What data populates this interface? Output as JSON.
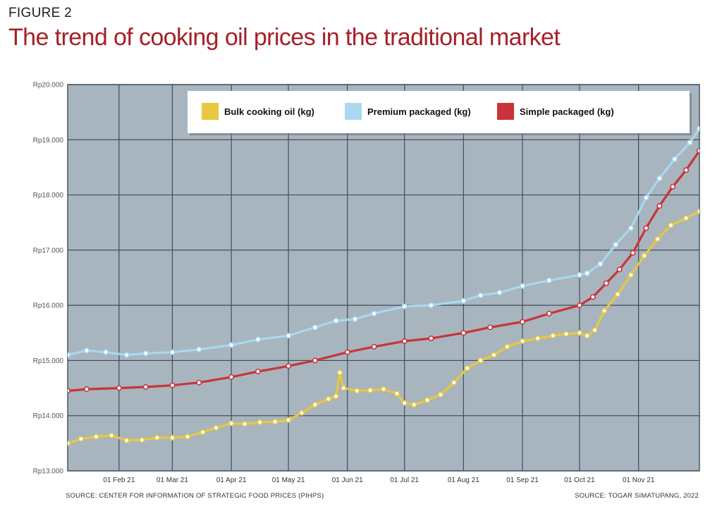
{
  "figure_label": "FIGURE 2",
  "title": "The trend of cooking oil prices in the traditional market",
  "source_left": "SOURCE: CENTER FOR INFORMATION OF STRATEGIC FOOD PRICES (PIHPS)",
  "source_right": "SOURCE: TOGAR SIMATUPANG, 2022",
  "colors": {
    "plot_bg": "#a8b5bf",
    "grid": "#3f4d5c",
    "bulk": "#e8c840",
    "premium": "#a9d8f0",
    "simple": "#c9343a"
  },
  "chart_data": {
    "type": "line",
    "xlabel": "",
    "ylabel": "",
    "x_range": [
      "2021-01-05",
      "2021-12-03"
    ],
    "ylim": [
      13000,
      20000
    ],
    "y_ticks": [
      13000,
      14000,
      15000,
      16000,
      17000,
      18000,
      19000,
      20000
    ],
    "y_tick_labels": [
      "Rp13.000",
      "Rp14.000",
      "Rp15.000",
      "Rp16.000",
      "Rp17.000",
      "Rp18.000",
      "Rp19.000",
      "Rp20.000"
    ],
    "x_ticks": [
      "2021-02-01",
      "2021-03-01",
      "2021-04-01",
      "2021-05-01",
      "2021-06-01",
      "2021-07-01",
      "2021-08-01",
      "2021-09-01",
      "2021-10-01",
      "2021-11-01"
    ],
    "x_tick_labels": [
      "01 Feb 21",
      "01 Mar 21",
      "01 Apr 21",
      "01 May 21",
      "01 Jun 21",
      "01 Jul 21",
      "01 Aug 21",
      "01 Sep 21",
      "01 Oct 21",
      "01 Nov 21"
    ],
    "grid": true,
    "legend_position": "top-right",
    "series": [
      {
        "name": "Bulk cooking oil (kg)",
        "color": "#e8c840",
        "points": [
          [
            "2021-01-05",
            13500
          ],
          [
            "2021-01-12",
            13580
          ],
          [
            "2021-01-20",
            13620
          ],
          [
            "2021-01-28",
            13640
          ],
          [
            "2021-02-05",
            13550
          ],
          [
            "2021-02-13",
            13560
          ],
          [
            "2021-02-21",
            13600
          ],
          [
            "2021-03-01",
            13600
          ],
          [
            "2021-03-09",
            13620
          ],
          [
            "2021-03-17",
            13700
          ],
          [
            "2021-03-24",
            13780
          ],
          [
            "2021-04-01",
            13860
          ],
          [
            "2021-04-08",
            13850
          ],
          [
            "2021-04-16",
            13880
          ],
          [
            "2021-04-24",
            13890
          ],
          [
            "2021-05-01",
            13920
          ],
          [
            "2021-05-08",
            14050
          ],
          [
            "2021-05-15",
            14200
          ],
          [
            "2021-05-22",
            14300
          ],
          [
            "2021-05-26",
            14350
          ],
          [
            "2021-05-28",
            14780
          ],
          [
            "2021-05-30",
            14500
          ],
          [
            "2021-06-06",
            14450
          ],
          [
            "2021-06-13",
            14460
          ],
          [
            "2021-06-20",
            14480
          ],
          [
            "2021-06-27",
            14400
          ],
          [
            "2021-07-01",
            14230
          ],
          [
            "2021-07-06",
            14200
          ],
          [
            "2021-07-13",
            14280
          ],
          [
            "2021-07-20",
            14380
          ],
          [
            "2021-07-27",
            14600
          ],
          [
            "2021-08-03",
            14860
          ],
          [
            "2021-08-10",
            15000
          ],
          [
            "2021-08-17",
            15100
          ],
          [
            "2021-08-24",
            15250
          ],
          [
            "2021-09-01",
            15350
          ],
          [
            "2021-09-09",
            15400
          ],
          [
            "2021-09-17",
            15450
          ],
          [
            "2021-09-24",
            15480
          ],
          [
            "2021-10-01",
            15500
          ],
          [
            "2021-10-05",
            15450
          ],
          [
            "2021-10-09",
            15550
          ],
          [
            "2021-10-14",
            15900
          ],
          [
            "2021-10-21",
            16200
          ],
          [
            "2021-10-28",
            16550
          ],
          [
            "2021-11-04",
            16900
          ],
          [
            "2021-11-11",
            17200
          ],
          [
            "2021-11-18",
            17450
          ],
          [
            "2021-11-26",
            17580
          ],
          [
            "2021-12-03",
            17700
          ]
        ]
      },
      {
        "name": "Premium packaged (kg)",
        "color": "#a9d8f0",
        "points": [
          [
            "2021-01-05",
            15100
          ],
          [
            "2021-01-15",
            15180
          ],
          [
            "2021-01-25",
            15150
          ],
          [
            "2021-02-05",
            15100
          ],
          [
            "2021-02-15",
            15130
          ],
          [
            "2021-03-01",
            15150
          ],
          [
            "2021-03-15",
            15200
          ],
          [
            "2021-04-01",
            15280
          ],
          [
            "2021-04-15",
            15380
          ],
          [
            "2021-05-01",
            15450
          ],
          [
            "2021-05-15",
            15600
          ],
          [
            "2021-05-26",
            15720
          ],
          [
            "2021-06-05",
            15750
          ],
          [
            "2021-06-15",
            15850
          ],
          [
            "2021-07-01",
            15980
          ],
          [
            "2021-07-15",
            16000
          ],
          [
            "2021-08-01",
            16080
          ],
          [
            "2021-08-10",
            16180
          ],
          [
            "2021-08-20",
            16230
          ],
          [
            "2021-09-01",
            16350
          ],
          [
            "2021-09-15",
            16450
          ],
          [
            "2021-10-01",
            16550
          ],
          [
            "2021-10-05",
            16580
          ],
          [
            "2021-10-12",
            16750
          ],
          [
            "2021-10-20",
            17100
          ],
          [
            "2021-10-28",
            17400
          ],
          [
            "2021-11-05",
            17950
          ],
          [
            "2021-11-12",
            18300
          ],
          [
            "2021-11-20",
            18650
          ],
          [
            "2021-11-28",
            18950
          ],
          [
            "2021-12-03",
            19200
          ]
        ]
      },
      {
        "name": "Simple packaged (kg)",
        "color": "#c9343a",
        "points": [
          [
            "2021-01-05",
            14450
          ],
          [
            "2021-01-15",
            14480
          ],
          [
            "2021-02-01",
            14500
          ],
          [
            "2021-02-15",
            14520
          ],
          [
            "2021-03-01",
            14550
          ],
          [
            "2021-03-15",
            14600
          ],
          [
            "2021-04-01",
            14700
          ],
          [
            "2021-04-15",
            14800
          ],
          [
            "2021-05-01",
            14900
          ],
          [
            "2021-05-15",
            15000
          ],
          [
            "2021-06-01",
            15150
          ],
          [
            "2021-06-15",
            15250
          ],
          [
            "2021-07-01",
            15350
          ],
          [
            "2021-07-15",
            15400
          ],
          [
            "2021-08-01",
            15500
          ],
          [
            "2021-08-15",
            15600
          ],
          [
            "2021-09-01",
            15700
          ],
          [
            "2021-09-15",
            15850
          ],
          [
            "2021-10-01",
            16000
          ],
          [
            "2021-10-08",
            16150
          ],
          [
            "2021-10-15",
            16400
          ],
          [
            "2021-10-22",
            16650
          ],
          [
            "2021-10-29",
            16950
          ],
          [
            "2021-11-05",
            17400
          ],
          [
            "2021-11-12",
            17800
          ],
          [
            "2021-11-19",
            18150
          ],
          [
            "2021-11-26",
            18450
          ],
          [
            "2021-12-03",
            18800
          ]
        ]
      }
    ]
  }
}
